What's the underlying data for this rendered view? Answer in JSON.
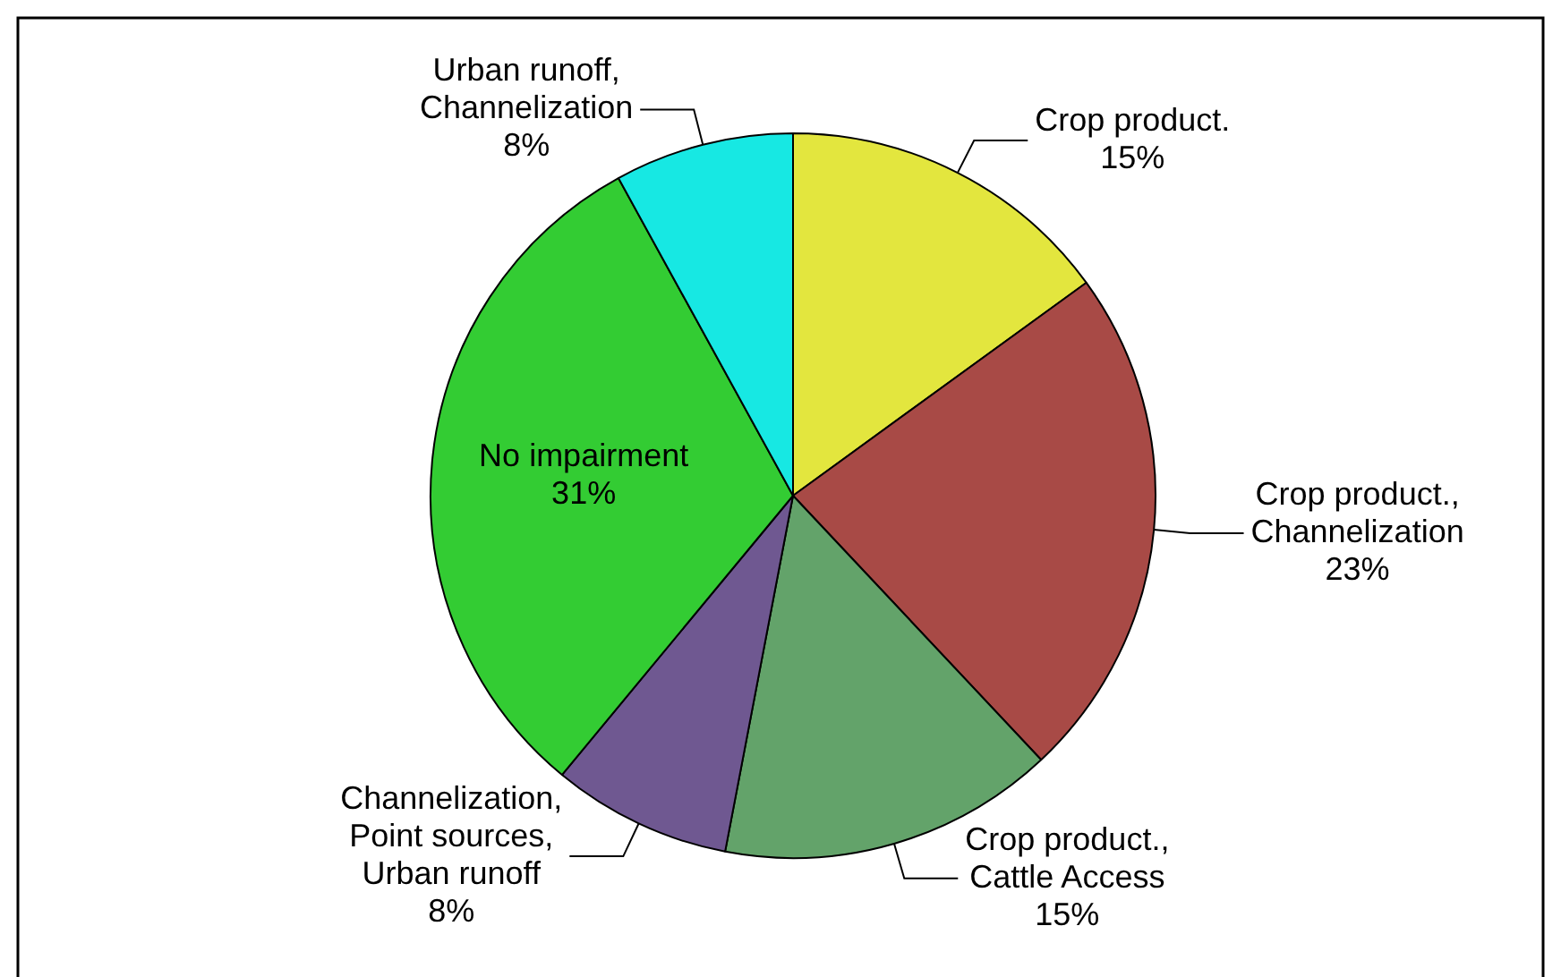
{
  "chart_data": {
    "type": "pie",
    "categories": [
      "Crop product.",
      "Crop product., Channelization",
      "Crop product., Cattle Access",
      "Channelization, Point sources, Urban runoff",
      "No impairment",
      "Urban runoff, Channelization"
    ],
    "values": [
      15,
      23,
      15,
      8,
      31,
      8
    ],
    "colors": [
      "#e3e63e",
      "#a84a46",
      "#63a36a",
      "#6f5891",
      "#33cc33",
      "#17e8e3"
    ],
    "value_labels": [
      "15%",
      "23%",
      "15%",
      "8%",
      "31%",
      "8%"
    ],
    "legend": false
  }
}
